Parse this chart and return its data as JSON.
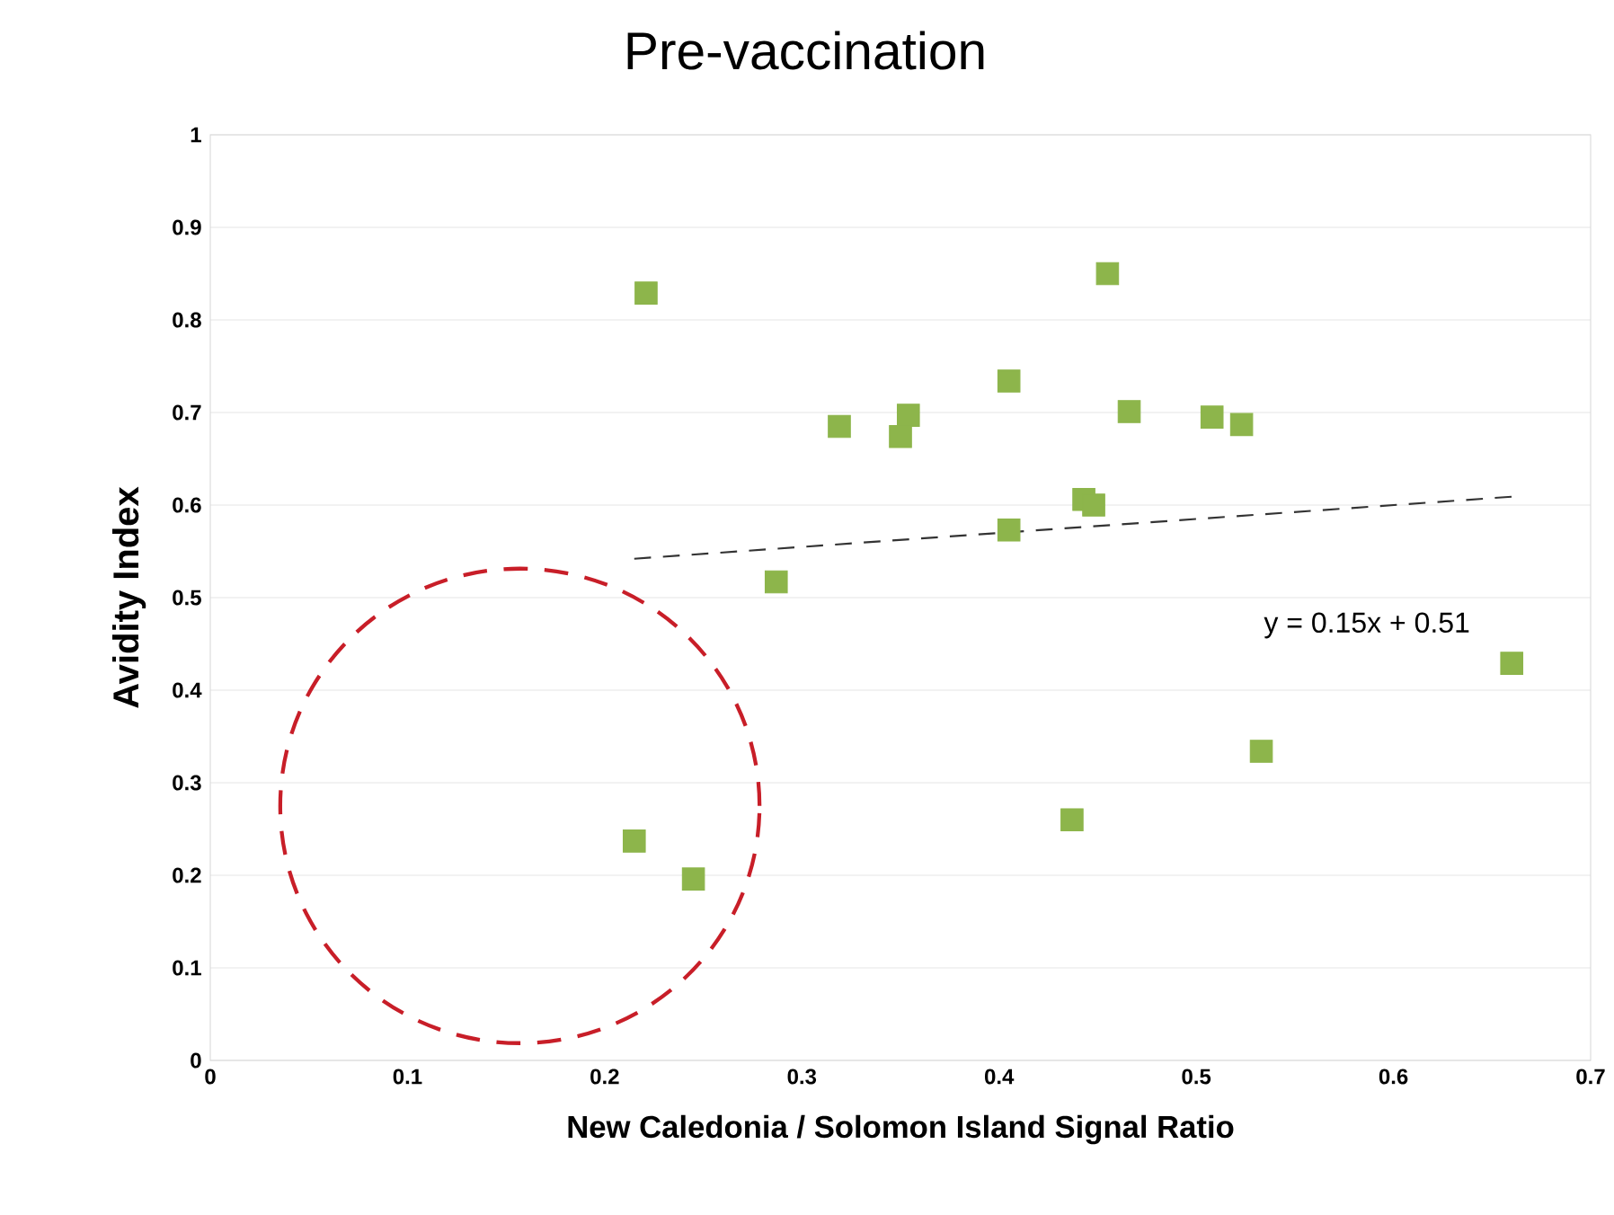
{
  "chart_data": {
    "type": "scatter",
    "title": "Pre-vaccination",
    "xlabel": "New Caledonia / Solomon Island Signal Ratio",
    "ylabel": "Avidity Index",
    "xlim": [
      0,
      0.7
    ],
    "ylim": [
      0,
      1
    ],
    "xticks": [
      0,
      0.1,
      0.2,
      0.3,
      0.4,
      0.5,
      0.6,
      0.7
    ],
    "yticks": [
      0,
      0.1,
      0.2,
      0.3,
      0.4,
      0.5,
      0.6,
      0.7,
      0.8,
      0.9,
      1
    ],
    "grid": "y",
    "marker": "square",
    "annotations": [
      "y = 0.15x + 0.51"
    ],
    "series": [
      {
        "color": "#8db54b",
        "x": [
          0.221,
          0.215,
          0.245,
          0.287,
          0.319,
          0.35,
          0.354,
          0.405,
          0.405,
          0.437,
          0.443,
          0.448,
          0.455,
          0.466,
          0.508,
          0.523,
          0.533,
          0.66
        ],
        "values": [
          0.829,
          0.237,
          0.196,
          0.517,
          0.685,
          0.674,
          0.697,
          0.734,
          0.573,
          0.26,
          0.606,
          0.6,
          0.85,
          0.701,
          0.695,
          0.687,
          0.334,
          0.429
        ]
      },
      {
        "type": "line",
        "color": "#333333",
        "line_style": "dashed",
        "marker": "none",
        "x": [
          0.215,
          0.66
        ],
        "values": [
          0.542,
          0.609
        ]
      }
    ]
  }
}
